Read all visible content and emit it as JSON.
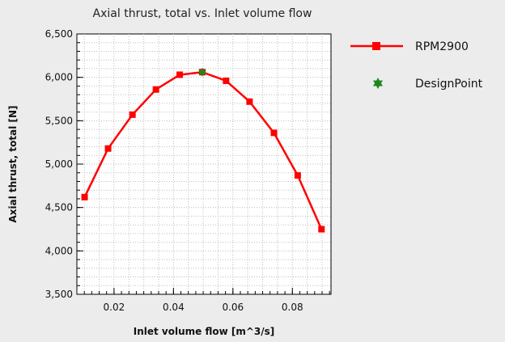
{
  "chart_data": {
    "type": "line",
    "title": "Axial thrust, total vs. Inlet volume flow",
    "xlabel": "Inlet volume flow [m^3/s]",
    "ylabel": "Axial thrust, total [N]",
    "xlim": [
      0.0075,
      0.093
    ],
    "ylim": [
      3500,
      6500
    ],
    "x_ticks": [
      0.02,
      0.04,
      0.06,
      0.08
    ],
    "x_tick_labels": [
      "0.02",
      "0.04",
      "0.06",
      "0.08"
    ],
    "y_ticks": [
      3500,
      4000,
      4500,
      5000,
      5500,
      6000,
      6500
    ],
    "y_tick_labels": [
      "3,500",
      "4,000",
      "4,500",
      "5,000",
      "5,500",
      "6,000",
      "6,500"
    ],
    "grid": true,
    "legend_position": "right",
    "series": [
      {
        "name": "RPM2900",
        "color": "#ff0000",
        "marker": "square",
        "x": [
          0.0101,
          0.018,
          0.0262,
          0.0341,
          0.0421,
          0.0497,
          0.0577,
          0.0656,
          0.0738,
          0.0818,
          0.0898
        ],
        "y": [
          4620,
          5180,
          5570,
          5860,
          6030,
          6060,
          5960,
          5720,
          5360,
          4870,
          4250
        ]
      },
      {
        "name": "DesignPoint",
        "color": "#1a8a1a",
        "marker": "star",
        "x": [
          0.0497
        ],
        "y": [
          6060
        ]
      }
    ]
  }
}
